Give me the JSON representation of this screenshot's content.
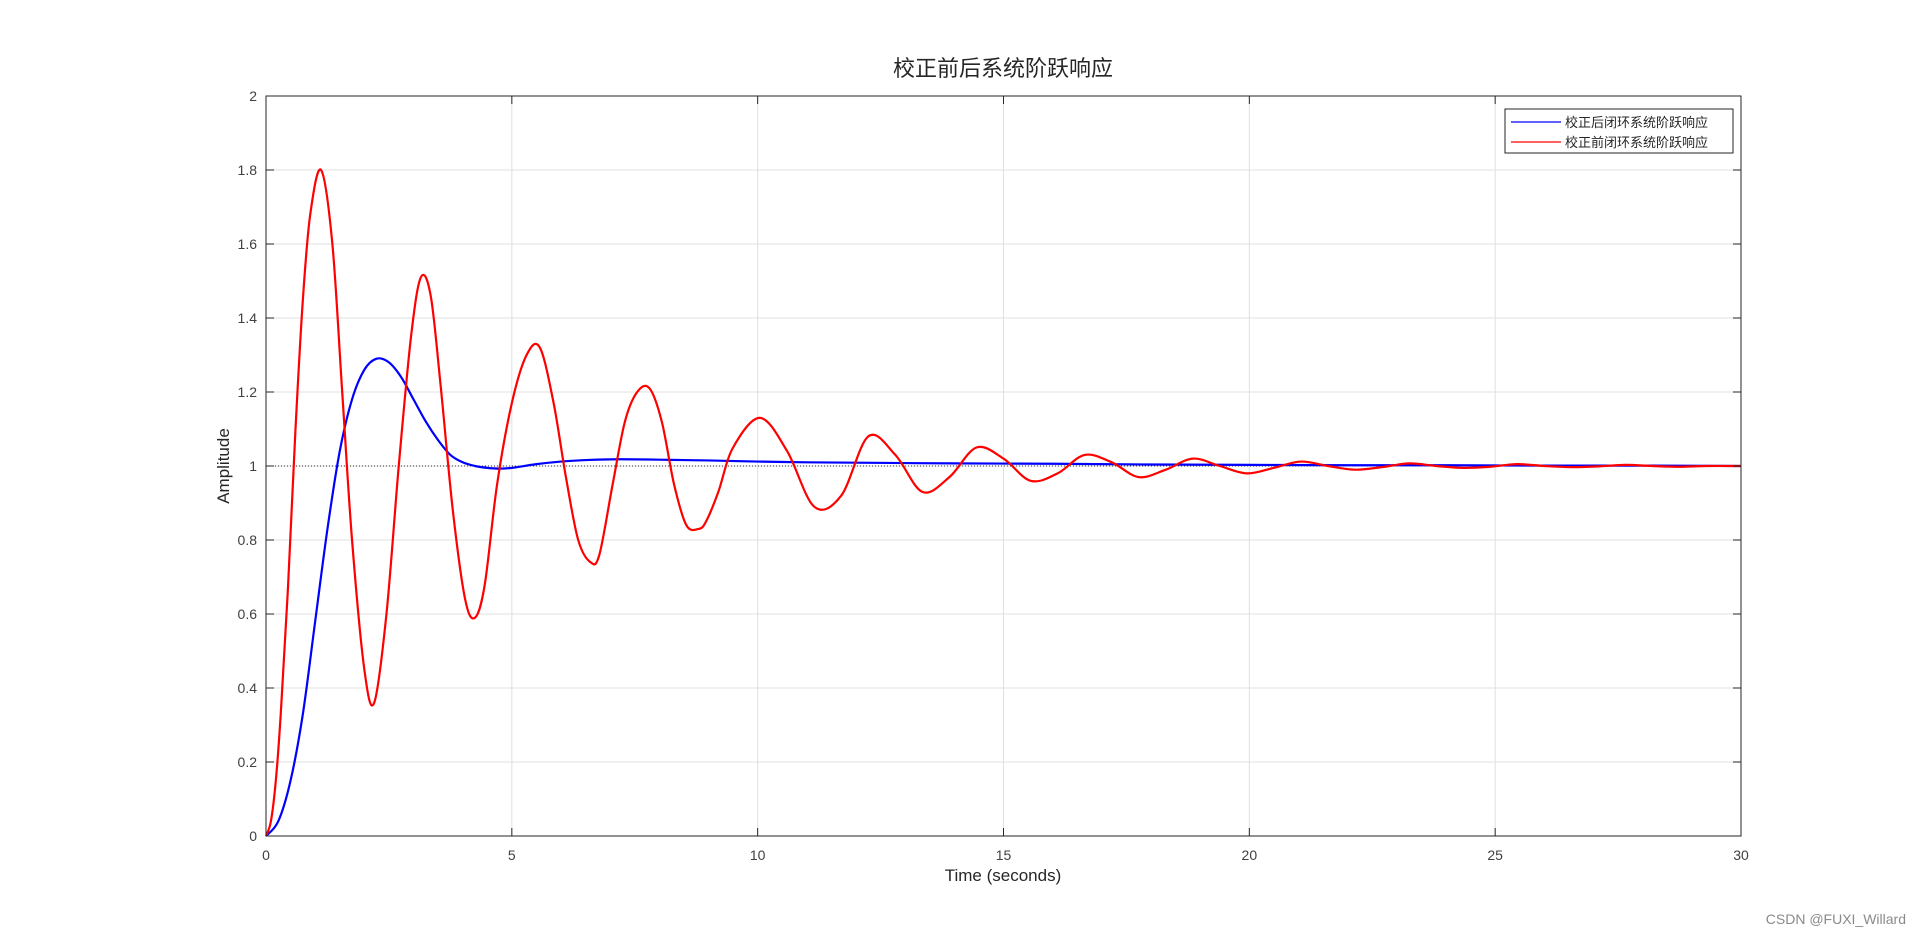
{
  "chart_data": {
    "type": "line",
    "title": "校正前后系统阶跃响应",
    "xlabel": "Time (seconds)",
    "ylabel": "Amplitude",
    "xlim": [
      0,
      30
    ],
    "ylim": [
      0,
      2
    ],
    "xticks": [
      0,
      5,
      10,
      15,
      20,
      25,
      30
    ],
    "yticks": [
      0,
      0.2,
      0.4,
      0.6,
      0.8,
      1,
      1.2,
      1.4,
      1.6,
      1.8,
      2
    ],
    "grid": true,
    "legend_position": "top-right",
    "reference_line": {
      "y": 1,
      "style": "dotted"
    },
    "series": [
      {
        "name": "校正后闭环系统阶跃响应",
        "color": "#0000ff",
        "x": [
          0,
          0.25,
          0.5,
          0.75,
          1.0,
          1.25,
          1.5,
          1.75,
          2.0,
          2.25,
          2.5,
          2.75,
          3.0,
          3.25,
          3.5,
          3.75,
          4.0,
          4.25,
          4.5,
          4.75,
          5.0,
          5.5,
          6.0,
          6.5,
          7.0,
          7.5,
          8.0,
          8.5,
          9.0,
          10.0,
          11.0,
          12.0,
          14.0,
          16.0,
          18.0,
          20.0,
          22.0,
          24.0,
          26.0,
          28.0,
          30.0
        ],
        "y": [
          0,
          0.04,
          0.15,
          0.33,
          0.58,
          0.83,
          1.04,
          1.18,
          1.26,
          1.29,
          1.28,
          1.24,
          1.18,
          1.12,
          1.07,
          1.03,
          1.01,
          1.0,
          0.995,
          0.993,
          0.995,
          1.005,
          1.012,
          1.016,
          1.018,
          1.018,
          1.017,
          1.016,
          1.015,
          1.012,
          1.01,
          1.009,
          1.007,
          1.006,
          1.004,
          1.003,
          1.002,
          1.002,
          1.001,
          1.001,
          1.0
        ]
      },
      {
        "name": "校正前闭环系统阶跃响应",
        "color": "#ff0000",
        "x": [
          0,
          0.1,
          0.2,
          0.3,
          0.45,
          0.6,
          0.75,
          0.9,
          1.12,
          1.35,
          1.55,
          1.75,
          2.0,
          2.2,
          2.45,
          2.7,
          2.95,
          3.15,
          3.35,
          3.55,
          3.8,
          4.05,
          4.25,
          4.45,
          4.7,
          5.0,
          5.3,
          5.57,
          5.85,
          6.1,
          6.35,
          6.6,
          6.78,
          7.05,
          7.3,
          7.55,
          7.8,
          8.05,
          8.3,
          8.55,
          8.8,
          8.95,
          9.2,
          9.5,
          10.05,
          10.6,
          11.15,
          11.7,
          12.25,
          12.8,
          13.35,
          13.9,
          14.45,
          15.0,
          15.55,
          16.1,
          16.65,
          17.2,
          17.75,
          18.3,
          18.85,
          19.4,
          19.95,
          20.5,
          21.05,
          21.6,
          22.15,
          22.7,
          23.25,
          23.8,
          24.35,
          24.9,
          25.45,
          26.0,
          26.55,
          27.1,
          27.65,
          28.2,
          28.75,
          29.3,
          30.0
        ],
        "y": [
          0,
          0.04,
          0.15,
          0.33,
          0.68,
          1.1,
          1.45,
          1.68,
          1.8,
          1.6,
          1.2,
          0.8,
          0.45,
          0.36,
          0.6,
          1.0,
          1.35,
          1.51,
          1.46,
          1.22,
          0.88,
          0.64,
          0.59,
          0.68,
          0.95,
          1.17,
          1.3,
          1.32,
          1.17,
          0.97,
          0.8,
          0.74,
          0.76,
          0.95,
          1.12,
          1.2,
          1.21,
          1.12,
          0.95,
          0.84,
          0.83,
          0.85,
          0.93,
          1.05,
          1.13,
          1.04,
          0.89,
          0.92,
          1.08,
          1.03,
          0.93,
          0.97,
          1.05,
          1.02,
          0.96,
          0.98,
          1.03,
          1.01,
          0.97,
          0.99,
          1.02,
          1.0,
          0.98,
          0.995,
          1.012,
          1.0,
          0.99,
          0.997,
          1.007,
          1.0,
          0.995,
          0.998,
          1.005,
          1.0,
          0.997,
          0.999,
          1.003,
          1.0,
          0.998,
          1.0,
          1.0
        ]
      }
    ]
  },
  "watermark": "CSDN @FUXI_Willard"
}
